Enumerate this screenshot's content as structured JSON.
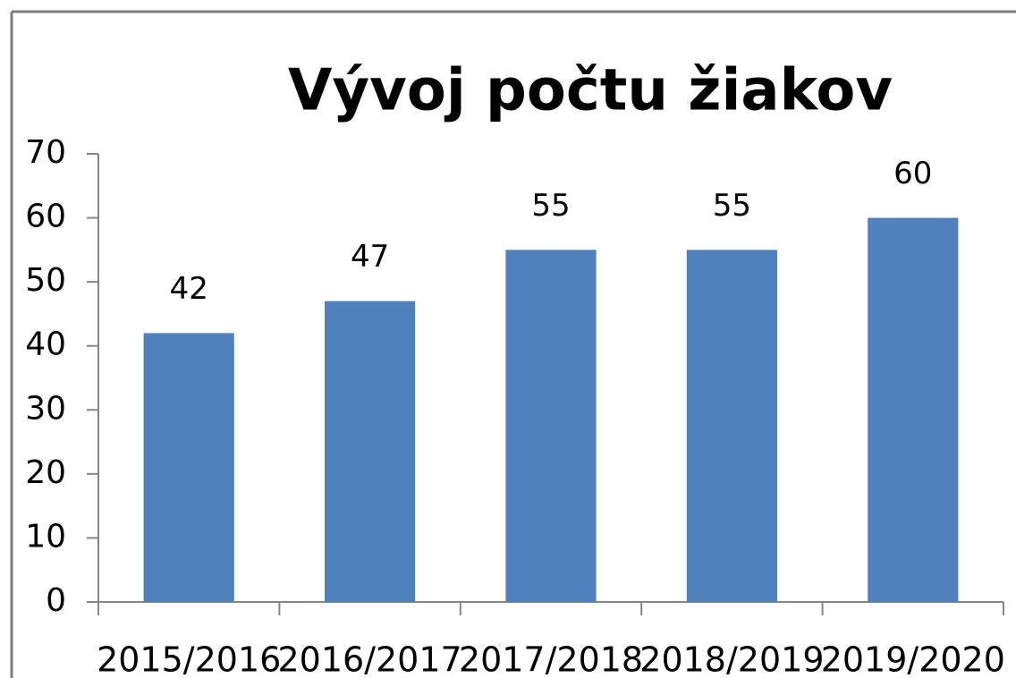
{
  "chart_data": {
    "type": "bar",
    "title": "Vývoj počtu žiakov",
    "categories": [
      "2015/2016",
      "2016/2017",
      "2017/2018",
      "2018/2019",
      "2019/2020"
    ],
    "values": [
      42,
      47,
      55,
      55,
      60
    ],
    "color": "#4f81bd",
    "ylim": [
      0,
      70
    ],
    "yticks": [
      0,
      10,
      20,
      30,
      40,
      50,
      60,
      70
    ],
    "grid": false
  }
}
